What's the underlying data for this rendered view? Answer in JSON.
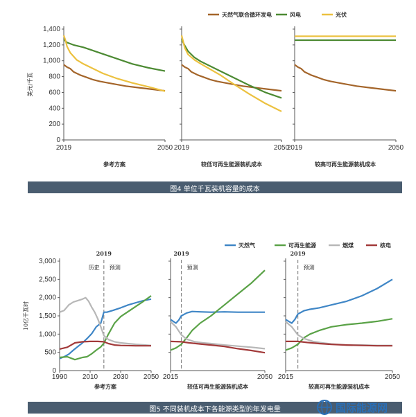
{
  "chart_data": [
    {
      "figure": 4,
      "type": "line",
      "ylabel": "美元/千瓦",
      "ylim": [
        0,
        1400
      ],
      "yticks": [
        "1,400",
        "1,200",
        "1,000",
        "800",
        "600",
        "400",
        "200",
        "0"
      ],
      "legend_position": "top-right",
      "series_legend": [
        "天然气联合循环发电",
        "风电",
        "光伏"
      ],
      "colors": {
        "gas": "#a4652a",
        "wind": "#4c8a33",
        "solar": "#ecc13f"
      },
      "panels": [
        {
          "xlabel": "参考方案",
          "xticks": [
            "2019",
            "2050"
          ],
          "series": [
            {
              "name": "天然气联合循环发电",
              "color": "#a4652a",
              "x": [
                2019,
                2020,
                2021,
                2022,
                2023,
                2024,
                2026,
                2028,
                2030,
                2034,
                2038,
                2042,
                2046,
                2050
              ],
              "values": [
                950,
                920,
                900,
                860,
                840,
                820,
                790,
                760,
                740,
                710,
                680,
                660,
                640,
                620
              ]
            },
            {
              "name": "风电",
              "color": "#4c8a33",
              "x": [
                2019,
                2020,
                2022,
                2025,
                2030,
                2035,
                2040,
                2045,
                2050
              ],
              "values": [
                1270,
                1230,
                1200,
                1170,
                1100,
                1030,
                960,
                910,
                870
              ]
            },
            {
              "name": "光伏",
              "color": "#ecc13f",
              "x": [
                2019,
                2019.5,
                2020,
                2021,
                2023,
                2025,
                2028,
                2031,
                2035,
                2040,
                2045,
                2050
              ],
              "values": [
                1320,
                1260,
                1180,
                1100,
                1010,
                960,
                900,
                840,
                780,
                720,
                670,
                615
              ]
            }
          ]
        },
        {
          "xlabel": "较低可再生能源装机成本",
          "xticks": [
            "2019",
            "2050"
          ],
          "series": [
            {
              "name": "天然气联合循环发电",
              "color": "#a4652a",
              "x": [
                2019,
                2020,
                2021,
                2022,
                2023,
                2024,
                2026,
                2028,
                2030,
                2034,
                2038,
                2042,
                2046,
                2050
              ],
              "values": [
                950,
                920,
                900,
                860,
                840,
                820,
                790,
                760,
                740,
                710,
                680,
                660,
                640,
                620
              ]
            },
            {
              "name": "风电",
              "color": "#4c8a33",
              "x": [
                2019,
                2020,
                2021,
                2023,
                2025,
                2028,
                2031,
                2035,
                2040,
                2045,
                2050
              ],
              "values": [
                1270,
                1190,
                1120,
                1040,
                990,
                930,
                870,
                790,
                690,
                600,
                530
              ]
            },
            {
              "name": "光伏",
              "color": "#ecc13f",
              "x": [
                2019,
                2019.5,
                2020,
                2021,
                2023,
                2025,
                2028,
                2031,
                2035,
                2040,
                2045,
                2050
              ],
              "values": [
                1320,
                1240,
                1160,
                1080,
                1010,
                960,
                890,
                820,
                710,
                580,
                460,
                360
              ]
            }
          ]
        },
        {
          "xlabel": "较高可再生能源装机成本",
          "xticks": [
            "2019",
            "2050"
          ],
          "series": [
            {
              "name": "天然气联合循环发电",
              "color": "#a4652a",
              "x": [
                2019,
                2020,
                2021,
                2022,
                2023,
                2024,
                2026,
                2028,
                2030,
                2034,
                2038,
                2042,
                2046,
                2050
              ],
              "values": [
                950,
                920,
                900,
                860,
                840,
                820,
                790,
                760,
                740,
                710,
                680,
                660,
                640,
                620
              ]
            },
            {
              "name": "风电",
              "color": "#4c8a33",
              "x": [
                2019,
                2050
              ],
              "values": [
                1260,
                1260
              ]
            },
            {
              "name": "光伏",
              "color": "#ecc13f",
              "x": [
                2019,
                2050
              ],
              "values": [
                1310,
                1310
              ]
            }
          ]
        }
      ],
      "caption": "图4  单位千瓦装机容量的成本"
    },
    {
      "figure": 5,
      "type": "line",
      "ylabel": "10亿千瓦时",
      "ylim": [
        0,
        3000
      ],
      "yticks": [
        "3,000",
        "2,500",
        "2,000",
        "1,500",
        "1,000",
        "500",
        "0"
      ],
      "legend_position": "top-right",
      "series_legend": [
        "天然气",
        "可再生能源",
        "燃煤",
        "核电"
      ],
      "colors": {
        "gas": "#3f86c6",
        "renewables": "#5aa247",
        "coal": "#b7b7b7",
        "nuclear": "#a23a3a"
      },
      "year_marker": "2019",
      "panels": [
        {
          "xlabel": "参考方案",
          "xticks": [
            "1990",
            "2010",
            "2030",
            "2050"
          ],
          "annotations": [
            "历史",
            "预测"
          ],
          "series": [
            {
              "name": "天然气",
              "color": "#3f86c6",
              "x": [
                1990,
                1993,
                1996,
                1999,
                2002,
                2005,
                2008,
                2011,
                2014,
                2017,
                2019,
                2021,
                2025,
                2030,
                2035,
                2040,
                2045,
                2050
              ],
              "values": [
                330,
                380,
                450,
                560,
                660,
                760,
                880,
                1010,
                1200,
                1300,
                1600,
                1600,
                1650,
                1720,
                1800,
                1860,
                1920,
                1960
              ]
            },
            {
              "name": "可再生能源",
              "color": "#5aa247",
              "x": [
                1990,
                1995,
                2000,
                2005,
                2008,
                2011,
                2014,
                2017,
                2019,
                2022,
                2026,
                2030,
                2035,
                2040,
                2045,
                2050
              ],
              "values": [
                360,
                380,
                300,
                360,
                380,
                460,
                560,
                650,
                750,
                1000,
                1300,
                1480,
                1620,
                1760,
                1900,
                2050
              ]
            },
            {
              "name": "燃煤",
              "color": "#b7b7b7",
              "x": [
                1990,
                1993,
                1996,
                1999,
                2002,
                2005,
                2007,
                2009,
                2011,
                2013,
                2015,
                2017,
                2019,
                2022,
                2026,
                2030,
                2040,
                2050
              ],
              "values": [
                1600,
                1650,
                1800,
                1880,
                1920,
                1960,
                2000,
                1900,
                1740,
                1600,
                1420,
                1200,
                960,
                850,
                790,
                760,
                720,
                690
              ]
            },
            {
              "name": "核电",
              "color": "#a23a3a",
              "x": [
                1990,
                1995,
                2000,
                2005,
                2010,
                2015,
                2019,
                2022,
                2026,
                2030,
                2040,
                2050
              ],
              "values": [
                590,
                640,
                760,
                790,
                800,
                800,
                790,
                740,
                700,
                690,
                680,
                680
              ]
            }
          ]
        },
        {
          "xlabel": "较低可再生能源装机成本",
          "xticks": [
            "2015",
            "2050"
          ],
          "annotations": [
            "预测"
          ],
          "series": [
            {
              "name": "天然气",
              "color": "#3f86c6",
              "x": [
                2015,
                2016,
                2017,
                2018,
                2019,
                2021,
                2023,
                2026,
                2030,
                2035,
                2040,
                2045,
                2050
              ],
              "values": [
                1400,
                1350,
                1300,
                1380,
                1500,
                1580,
                1620,
                1610,
                1600,
                1610,
                1600,
                1600,
                1600
              ]
            },
            {
              "name": "可再生能源",
              "color": "#5aa247",
              "x": [
                2015,
                2017,
                2019,
                2021,
                2023,
                2026,
                2030,
                2035,
                2040,
                2045,
                2050
              ],
              "values": [
                560,
                620,
                720,
                900,
                1100,
                1300,
                1500,
                1800,
                2100,
                2400,
                2750
              ]
            },
            {
              "name": "燃煤",
              "color": "#b7b7b7",
              "x": [
                2015,
                2017,
                2019,
                2021,
                2024,
                2027,
                2030,
                2035,
                2040,
                2045,
                2050
              ],
              "values": [
                1340,
                1200,
                980,
                860,
                790,
                760,
                740,
                700,
                670,
                640,
                600
              ]
            },
            {
              "name": "核电",
              "color": "#a23a3a",
              "x": [
                2015,
                2019,
                2022,
                2026,
                2030,
                2035,
                2040,
                2045,
                2050
              ],
              "values": [
                800,
                790,
                760,
                730,
                700,
                660,
                600,
                550,
                490
              ]
            }
          ]
        },
        {
          "xlabel": "较高可再生能源装机成本",
          "xticks": [
            "2015",
            "2050"
          ],
          "annotations": [
            "预测"
          ],
          "series": [
            {
              "name": "天然气",
              "color": "#3f86c6",
              "x": [
                2015,
                2016,
                2017,
                2018,
                2019,
                2021,
                2023,
                2026,
                2030,
                2035,
                2040,
                2045,
                2050
              ],
              "values": [
                1400,
                1350,
                1300,
                1400,
                1550,
                1640,
                1680,
                1720,
                1800,
                1900,
                2050,
                2250,
                2500
              ]
            },
            {
              "name": "可再生能源",
              "color": "#5aa247",
              "x": [
                2015,
                2017,
                2019,
                2021,
                2023,
                2026,
                2030,
                2035,
                2040,
                2045,
                2050
              ],
              "values": [
                560,
                620,
                720,
                900,
                1000,
                1100,
                1200,
                1260,
                1300,
                1350,
                1420
              ]
            },
            {
              "name": "燃煤",
              "color": "#b7b7b7",
              "x": [
                2015,
                2017,
                2019,
                2021,
                2024,
                2027,
                2030,
                2035,
                2040,
                2045,
                2050
              ],
              "values": [
                1340,
                1200,
                980,
                880,
                800,
                760,
                730,
                700,
                700,
                690,
                690
              ]
            },
            {
              "name": "核电",
              "color": "#a23a3a",
              "x": [
                2015,
                2019,
                2022,
                2026,
                2030,
                2035,
                2040,
                2045,
                2050
              ],
              "values": [
                800,
                800,
                770,
                740,
                720,
                700,
                690,
                680,
                680
              ]
            }
          ]
        }
      ],
      "caption": "图5  不同装机成本下各能源类型的年发电量"
    }
  ],
  "watermark": "国际能源网"
}
